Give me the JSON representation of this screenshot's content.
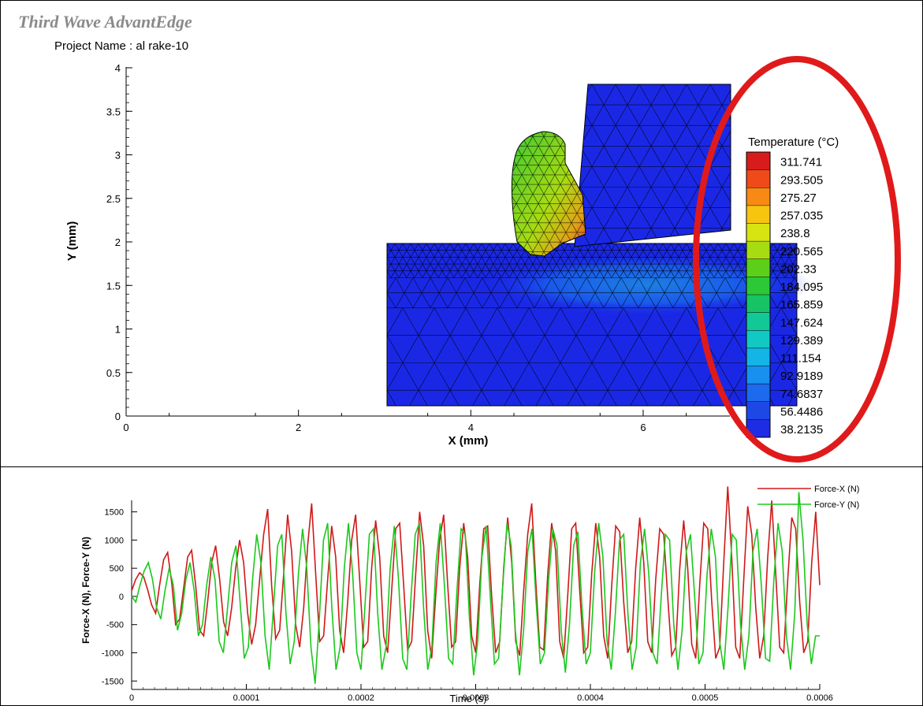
{
  "app": {
    "title": "Third Wave AdvantEdge",
    "project_label": "Project Name : al rake-10"
  },
  "mesh_plot": {
    "xlabel": "X (mm)",
    "ylabel": "Y (mm)",
    "xticks": [
      "0",
      "2",
      "4",
      "6"
    ],
    "yticks": [
      "0",
      "0.5",
      "1",
      "1.5",
      "2",
      "2.5",
      "3",
      "3.5",
      "4"
    ],
    "colors": {
      "mesh_blue": "#1a28e6",
      "highlight": "#e01a1a"
    }
  },
  "legend": {
    "title": "Temperature (°C)",
    "values": [
      "311.741",
      "293.505",
      "275.27",
      "257.035",
      "238.8",
      "220.565",
      "202.33",
      "184.095",
      "165.859",
      "147.624",
      "129.389",
      "111.154",
      "92.9189",
      "74.6837",
      "56.4486",
      "38.2135"
    ],
    "colors": [
      "#d81c1c",
      "#ee4a1a",
      "#f68a14",
      "#f7c410",
      "#d8e412",
      "#a8dc12",
      "#5cd018",
      "#2cc836",
      "#16c466",
      "#12c896",
      "#12c8c2",
      "#14b4e4",
      "#1890f0",
      "#1c6aee",
      "#1e48e6",
      "#1e2ce4"
    ]
  },
  "chart_data": {
    "type": "line",
    "xlabel": "Time (s)",
    "ylabel": "Force-X (N), Force-Y (N)",
    "xlim": [
      0,
      0.0006
    ],
    "ylim": [
      -1650,
      1900
    ],
    "xticks": [
      "0",
      "0.0001",
      "0.0002",
      "0.0003",
      "0.0004",
      "0.0005",
      "0.0006"
    ],
    "yticks": [
      "1500",
      "1000",
      "500",
      "0",
      "-500",
      "-1000",
      "-1500"
    ],
    "series": [
      {
        "name": "Force-X (N)",
        "color": "#d01818",
        "x_start": 0,
        "x_end": 0.0006,
        "values": [
          100,
          300,
          420,
          350,
          120,
          -150,
          -300,
          200,
          650,
          780,
          250,
          -500,
          -400,
          150,
          700,
          820,
          200,
          -600,
          -700,
          -100,
          600,
          900,
          300,
          -450,
          -700,
          -200,
          500,
          1000,
          600,
          -300,
          -850,
          -500,
          300,
          1100,
          1550,
          200,
          -750,
          -600,
          400,
          1450,
          800,
          -500,
          -900,
          -200,
          900,
          1650,
          400,
          -800,
          -700,
          300,
          1250,
          700,
          -600,
          -1000,
          -100,
          1000,
          1450,
          300,
          -900,
          -800,
          500,
          1350,
          700,
          -700,
          -1000,
          100,
          1200,
          1300,
          200,
          -950,
          -800,
          400,
          1500,
          900,
          -600,
          -1100,
          0,
          1000,
          1450,
          200,
          -900,
          -800,
          500,
          1300,
          700,
          -700,
          -1000,
          200,
          1200,
          1250,
          0,
          -1000,
          -800,
          500,
          1400,
          600,
          -800,
          -1050,
          100,
          1100,
          1650,
          300,
          -900,
          -950,
          400,
          1300,
          800,
          -800,
          -1100,
          0,
          1200,
          1300,
          100,
          -1000,
          -900,
          400,
          1300,
          700,
          -700,
          -1100,
          200,
          1250,
          1150,
          -100,
          -1000,
          -800,
          500,
          1400,
          600,
          -800,
          -1000,
          300,
          1200,
          1100,
          0,
          -1050,
          -900,
          500,
          1350,
          500,
          -850,
          -1100,
          200,
          1300,
          1200,
          -100,
          -1100,
          -900,
          600,
          1950,
          700,
          -900,
          -1100,
          300,
          1600,
          1100,
          -200,
          -1100,
          -700,
          700,
          1700,
          400,
          -900,
          -1000,
          300,
          1400,
          1200,
          -100,
          -1000,
          -800,
          600,
          1500,
          200
        ]
      },
      {
        "name": "Force-Y (N)",
        "color": "#1cc81c",
        "x_start": 0,
        "x_end": 0.0006,
        "values": [
          0,
          -100,
          200,
          450,
          600,
          300,
          -200,
          -400,
          100,
          500,
          200,
          -600,
          -300,
          300,
          600,
          100,
          -700,
          -500,
          200,
          700,
          300,
          -800,
          -1000,
          -200,
          600,
          900,
          -100,
          -1100,
          -900,
          300,
          1100,
          600,
          -700,
          -1300,
          -200,
          900,
          1100,
          -300,
          -1200,
          -800,
          400,
          1200,
          500,
          -900,
          -1550,
          -400,
          1000,
          1300,
          -200,
          -1300,
          -900,
          500,
          1300,
          400,
          -1000,
          -1300,
          -100,
          1100,
          1200,
          -300,
          -1300,
          -900,
          500,
          1250,
          300,
          -1100,
          -1300,
          0,
          1100,
          1300,
          -200,
          -1300,
          -900,
          600,
          1300,
          200,
          -1100,
          -1200,
          100,
          1200,
          1100,
          -400,
          -1400,
          -800,
          700,
          1250,
          0,
          -1200,
          -1100,
          200,
          1300,
          900,
          -600,
          -1400,
          -600,
          800,
          1200,
          -100,
          -1200,
          -1000,
          300,
          1200,
          900,
          -600,
          -1350,
          -500,
          900,
          1150,
          -200,
          -1200,
          -1000,
          400,
          1300,
          700,
          -800,
          -1300,
          -300,
          1000,
          1100,
          -300,
          -1300,
          -900,
          600,
          1200,
          400,
          -1000,
          -1200,
          0,
          1100,
          1000,
          -500,
          -1300,
          -600,
          800,
          1100,
          0,
          -1200,
          -1000,
          400,
          1200,
          700,
          -800,
          -1300,
          -200,
          1100,
          1000,
          -500,
          -1300,
          -700,
          800,
          1200,
          200,
          -1100,
          -1150,
          300,
          1300,
          800,
          -700,
          -1300,
          -300,
          1850,
          1000,
          -500,
          -1200,
          -700,
          -700
        ]
      }
    ]
  }
}
